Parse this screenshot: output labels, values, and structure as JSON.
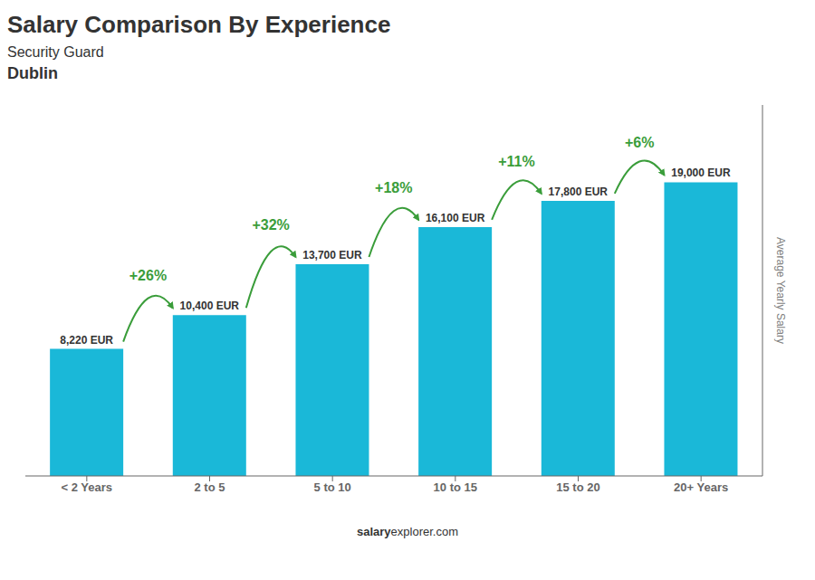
{
  "chart_data": {
    "type": "bar",
    "title": "Salary Comparison By Experience",
    "subtitle": [
      "Security Guard",
      "Dublin"
    ],
    "ylabel": "Average Yearly Salary",
    "footer": [
      "salary",
      "explorer.com"
    ],
    "categories": [
      "< 2 Years",
      "2 to 5",
      "5 to 10",
      "10 to 15",
      "15 to 20",
      "20+ Years"
    ],
    "values": [
      8220,
      10400,
      13700,
      16100,
      17800,
      19000
    ],
    "value_labels": [
      "8,220 EUR",
      "10,400 EUR",
      "13,700 EUR",
      "16,100 EUR",
      "17,800 EUR",
      "19,000 EUR"
    ],
    "data_labels": true,
    "color": "#1ab8d8",
    "ylim": [
      0,
      24000
    ],
    "tick_labels": "x",
    "grid": false,
    "annotations": [
      {
        "text": "+26%",
        "from": "< 2 Years",
        "to": "2 to 5",
        "color": "#3a9d3a"
      },
      {
        "text": "+32%",
        "from": "2 to 5",
        "to": "5 to 10",
        "color": "#3a9d3a"
      },
      {
        "text": "+18%",
        "from": "5 to 10",
        "to": "10 to 15",
        "color": "#3a9d3a"
      },
      {
        "text": "+11%",
        "from": "10 to 15",
        "to": "15 to 20",
        "color": "#3a9d3a"
      },
      {
        "text": "+6%",
        "from": "15 to 20",
        "to": "20+ Years",
        "color": "#3a9d3a"
      }
    ]
  }
}
